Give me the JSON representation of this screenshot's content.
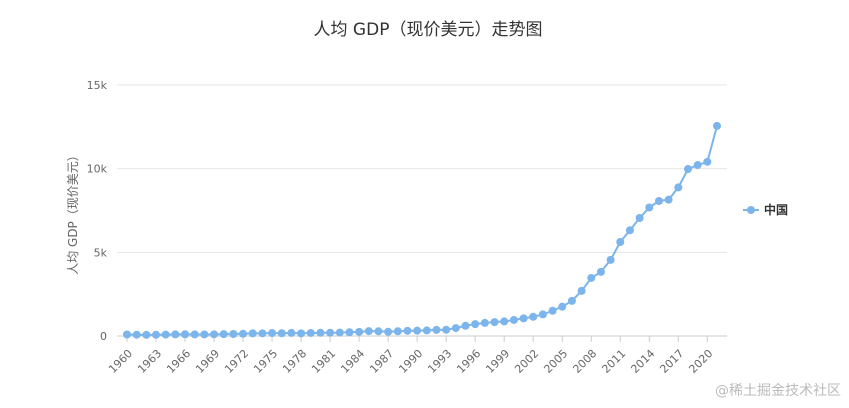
{
  "chart_data": {
    "type": "line",
    "title": "人均 GDP（现价美元）走势图",
    "ylabel": "人均 GDP（现价美元）",
    "xlabel": "",
    "ylim": [
      0,
      15000
    ],
    "y_ticks": [
      0,
      5000,
      10000,
      15000
    ],
    "y_tick_labels": [
      "0",
      "5k",
      "10k",
      "15k"
    ],
    "x_tick_labels": [
      "1960",
      "1963",
      "1966",
      "1969",
      "1972",
      "1975",
      "1978",
      "1981",
      "1984",
      "1987",
      "1990",
      "1993",
      "1996",
      "1999",
      "2002",
      "2005",
      "2008",
      "2011",
      "2014",
      "2017",
      "2020"
    ],
    "grid": true,
    "legend_position": "right",
    "color": "#7cb5ec",
    "series": [
      {
        "name": "中国",
        "x": [
          1960,
          1961,
          1962,
          1963,
          1964,
          1965,
          1966,
          1967,
          1968,
          1969,
          1970,
          1971,
          1972,
          1973,
          1974,
          1975,
          1976,
          1977,
          1978,
          1979,
          1980,
          1981,
          1982,
          1983,
          1984,
          1985,
          1986,
          1987,
          1988,
          1989,
          1990,
          1991,
          1992,
          1993,
          1994,
          1995,
          1996,
          1997,
          1998,
          1999,
          2000,
          2001,
          2002,
          2003,
          2004,
          2005,
          2006,
          2007,
          2008,
          2009,
          2010,
          2011,
          2012,
          2013,
          2014,
          2015,
          2016,
          2017,
          2018,
          2019,
          2020,
          2021
        ],
        "values": [
          90,
          76,
          70,
          74,
          85,
          98,
          104,
          97,
          91,
          100,
          113,
          119,
          132,
          157,
          160,
          178,
          165,
          185,
          156,
          183,
          195,
          197,
          203,
          225,
          250,
          294,
          281,
          251,
          283,
          310,
          318,
          333,
          366,
          377,
          473,
          610,
          709,
          782,
          829,
          873,
          959,
          1053,
          1149,
          1289,
          1509,
          1753,
          2099,
          2694,
          3468,
          3832,
          4550,
          5618,
          6317,
          7051,
          7679,
          8067,
          8148,
          8879,
          9977,
          10217,
          10409,
          12556
        ]
      }
    ]
  },
  "watermark": "@稀土掘金技术社区"
}
